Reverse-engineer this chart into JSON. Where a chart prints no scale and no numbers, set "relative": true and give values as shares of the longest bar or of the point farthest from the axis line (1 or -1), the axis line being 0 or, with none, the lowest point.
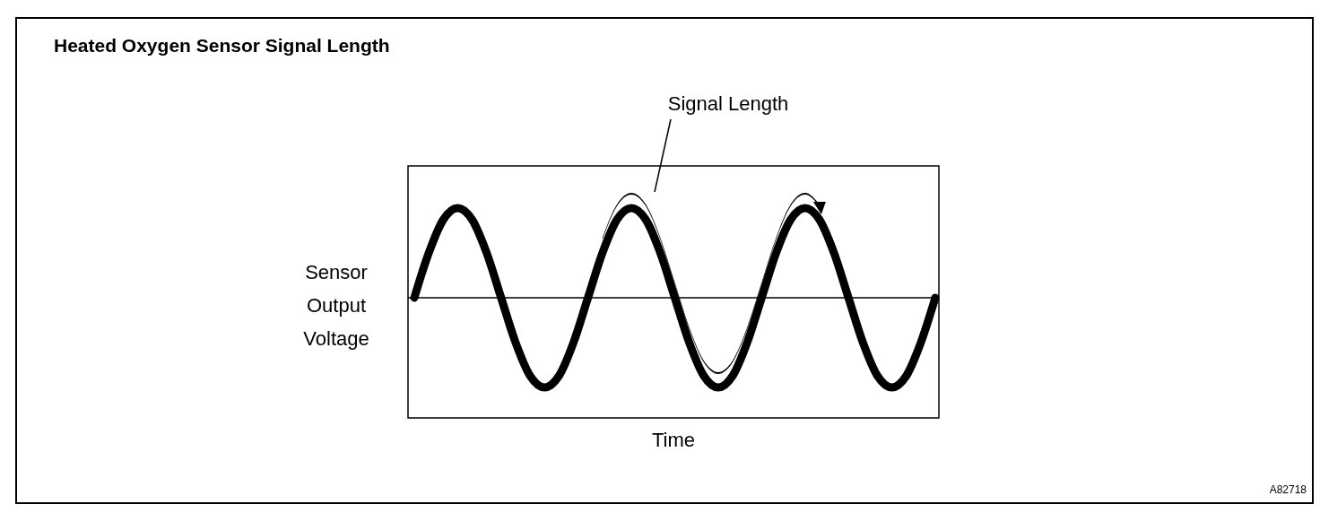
{
  "chart_data": {
    "type": "line",
    "title": "Heated Oxygen Sensor Signal Length",
    "xlabel": "Time",
    "ylabel": "Sensor Output Voltage",
    "relative": true,
    "marker": "none",
    "line_style": "solid",
    "categories": [
      null,
      null,
      null,
      null,
      null,
      null,
      null,
      null,
      null,
      null,
      null,
      null,
      null,
      null,
      null,
      null,
      null,
      null,
      null,
      null,
      null,
      null,
      null,
      null,
      null,
      null,
      null,
      null,
      null,
      null,
      null,
      null,
      null,
      null,
      null,
      null,
      null
    ],
    "series": [
      {
        "color": "#000000",
        "values": [
          0,
          0.5,
          0.87,
          1,
          0.87,
          0.5,
          0,
          -0.5,
          -0.87,
          -1,
          -0.87,
          -0.5,
          0,
          0.5,
          0.87,
          1,
          0.87,
          0.5,
          0,
          -0.5,
          -0.87,
          -1,
          -0.87,
          -0.5,
          0,
          0.5,
          0.87,
          1,
          0.87,
          0.5,
          0,
          -0.5,
          -0.87,
          -1,
          -0.87,
          -0.5,
          0
        ]
      }
    ],
    "annotations": [
      "Signal Length",
      "A82718"
    ]
  }
}
